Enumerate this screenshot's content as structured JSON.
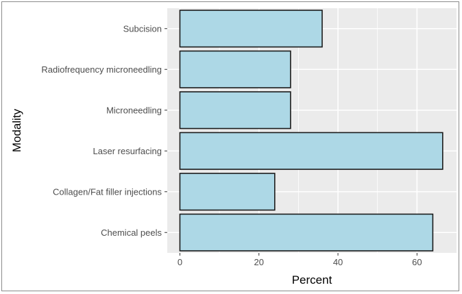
{
  "chart_data": {
    "type": "bar",
    "orientation": "horizontal",
    "title": "",
    "xlabel": "Percent",
    "ylabel": "Modality",
    "categories": [
      "Subcision",
      "Radiofrequency microneedling",
      "Microneedling",
      "Laser resurfacing",
      "Collagen/Fat filler injections",
      "Chemical peels"
    ],
    "values": [
      36,
      28,
      28,
      66.5,
      24,
      64
    ],
    "xlim": [
      -3.2,
      70
    ],
    "xticks": [
      0,
      20,
      40,
      60
    ],
    "xtick_labels": [
      "0",
      "20",
      "40",
      "60"
    ],
    "grid": true,
    "legend": "none",
    "colors": {
      "bar_fill": "#add8e6",
      "bar_stroke": "#1a1a1a",
      "panel_bg": "#ebebeb",
      "grid": "#ffffff"
    }
  }
}
